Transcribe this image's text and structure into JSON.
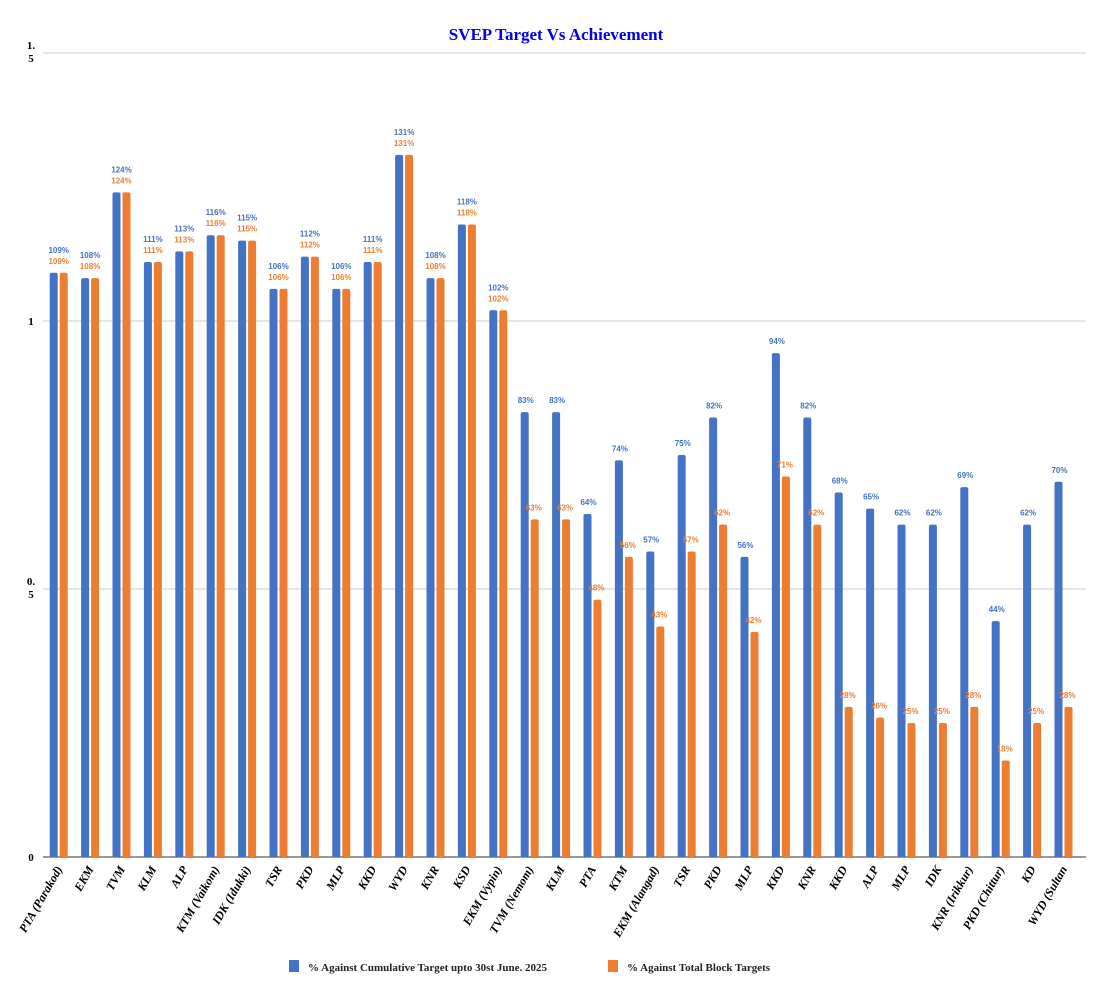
{
  "chart_data": {
    "type": "bar",
    "title": "SVEP Target Vs Achievement",
    "xlabel": "",
    "ylabel": "",
    "ylim": [
      0,
      1.5
    ],
    "yticks": [
      0,
      0.5,
      1,
      1.5
    ],
    "ytick_labels": [
      "0",
      "0.5",
      "1",
      "1.5"
    ],
    "grid": true,
    "legend_position": "bottom",
    "categories": [
      "PTA (Parakod)",
      "EKM",
      "TVM",
      "KLM",
      "ALP",
      "KTM (Vaikom)",
      "IDK (Idukki)",
      "TSR",
      "PKD",
      "MLP",
      "KKD",
      "WYD",
      "KNR",
      "KSD",
      "EKM (Vypin)",
      "TVM (Nemom)",
      "KLM",
      "PTA",
      "KTM",
      "EKM (Alangad)",
      "TSR",
      "PKD",
      "MLP",
      "KKD",
      "KNR",
      "KKD",
      "ALP",
      "MLP",
      "IDK",
      "KNR (Irikkur)",
      "PKD (Chittur)",
      "KD",
      "WYD (Sultan"
    ],
    "series": [
      {
        "name": "% Against Cumulative Target upto  30st June. 2025",
        "color": "#4472c4",
        "values": [
          1.09,
          1.08,
          1.24,
          1.11,
          1.13,
          1.16,
          1.15,
          1.06,
          1.12,
          1.06,
          1.11,
          1.31,
          1.08,
          1.18,
          1.02,
          0.83,
          0.83,
          0.64,
          0.74,
          0.57,
          0.75,
          0.82,
          0.56,
          0.94,
          0.82,
          0.68,
          0.65,
          0.62,
          0.62,
          0.69,
          0.44,
          0.62,
          0.7
        ],
        "labels": [
          "109%",
          "108%",
          "124%",
          "111%",
          "113%",
          "116%",
          "115%",
          "106%",
          "112%",
          "106%",
          "111%",
          "131%",
          "108%",
          "118%",
          "102%",
          "83%",
          "83%",
          "64%",
          "74%",
          "57%",
          "75%",
          "82%",
          "56%",
          "94%",
          "82%",
          "68%",
          "65%",
          "62%",
          "62%",
          "69%",
          "44%",
          "62%",
          "70%"
        ]
      },
      {
        "name": "% Against Total Block Targets",
        "color": "#ed7d31",
        "values": [
          1.09,
          1.08,
          1.24,
          1.11,
          1.13,
          1.16,
          1.15,
          1.06,
          1.12,
          1.06,
          1.11,
          1.31,
          1.08,
          1.18,
          1.02,
          0.63,
          0.63,
          0.48,
          0.56,
          0.43,
          0.57,
          0.62,
          0.42,
          0.71,
          0.62,
          0.28,
          0.26,
          0.25,
          0.25,
          0.28,
          0.18,
          0.25,
          0.28
        ],
        "labels": [
          "109%",
          "108%",
          "124%",
          "111%",
          "113%",
          "116%",
          "115%",
          "106%",
          "112%",
          "106%",
          "111%",
          "131%",
          "108%",
          "118%",
          "102%",
          "63%",
          "63%",
          "48%",
          "56%",
          "43%",
          "57%",
          "62%",
          "42%",
          "71%",
          "62%",
          "28%",
          "26%",
          "25%",
          "25%",
          "28%",
          "18%",
          "25%",
          "28%"
        ]
      }
    ]
  }
}
